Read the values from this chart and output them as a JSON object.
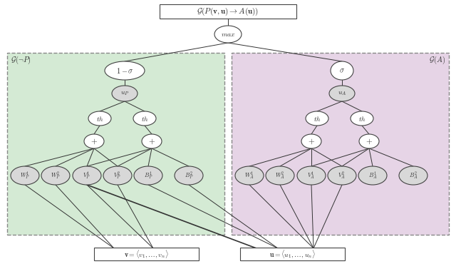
{
  "title": "$\\mathcal{G}(P(\\mathbf{v}, \\mathbf{u}) \\rightarrow A(\\mathbf{u}))$",
  "left_label": "$\\mathcal{G}(\\neg P)$",
  "right_label": "$\\mathcal{G}(A)$",
  "left_bg": "#d4ead4",
  "right_bg": "#e6d4e6",
  "node_white": "#ffffff",
  "node_gray": "#d8d8d8",
  "edge_color": "#555555",
  "figsize": [
    6.4,
    3.84
  ],
  "dpi": 100,
  "bottom_left_label": "$\\mathbf{v} = \\langle v_1, \\ldots, v_n \\rangle$",
  "bottom_right_label": "$\\mathbf{u} = \\langle u_1, \\ldots, u_n \\rangle$",
  "leaf_labels_left": [
    "$W_P^1$",
    "$W_P^2$",
    "$V_P^1$",
    "$V_P^2$",
    "$B_P^1$",
    "$B_P^2$"
  ],
  "leaf_labels_right": [
    "$W_A^1$",
    "$W_A^2$",
    "$V_A^1$",
    "$V_A^2$",
    "$B_A^1$",
    "$B_A^2$"
  ]
}
